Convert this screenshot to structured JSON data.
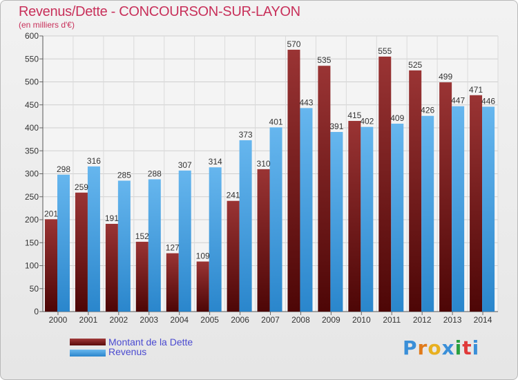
{
  "title": "Revenus/Dette - CONCOURSON-SUR-LAYON",
  "subtitle": "(en milliers d'€)",
  "brand": "Proxiti",
  "colors": {
    "debt_top": "#9a3434",
    "debt_bottom": "#4d0606",
    "revenue_top": "#66b6ee",
    "revenue_bottom": "#2a86cc",
    "title": "#c8305a",
    "legend_text": "#4a4ad0"
  },
  "chart_data": {
    "type": "bar",
    "categories": [
      "2000",
      "2001",
      "2002",
      "2003",
      "2004",
      "2005",
      "2006",
      "2007",
      "2008",
      "2009",
      "2010",
      "2011",
      "2012",
      "2013",
      "2014"
    ],
    "series": [
      {
        "name": "Montant de la Dette",
        "values": [
          201,
          259,
          191,
          152,
          127,
          109,
          241,
          310,
          570,
          535,
          415,
          555,
          525,
          499,
          471
        ]
      },
      {
        "name": "Revenus",
        "values": [
          298,
          316,
          285,
          288,
          307,
          314,
          373,
          401,
          443,
          391,
          402,
          409,
          426,
          447,
          446
        ]
      }
    ],
    "ylim": [
      0,
      600
    ],
    "yticks": [
      0,
      50,
      100,
      150,
      200,
      250,
      300,
      350,
      400,
      450,
      500,
      550,
      600
    ],
    "grid": true,
    "legend": "bottom-left"
  }
}
